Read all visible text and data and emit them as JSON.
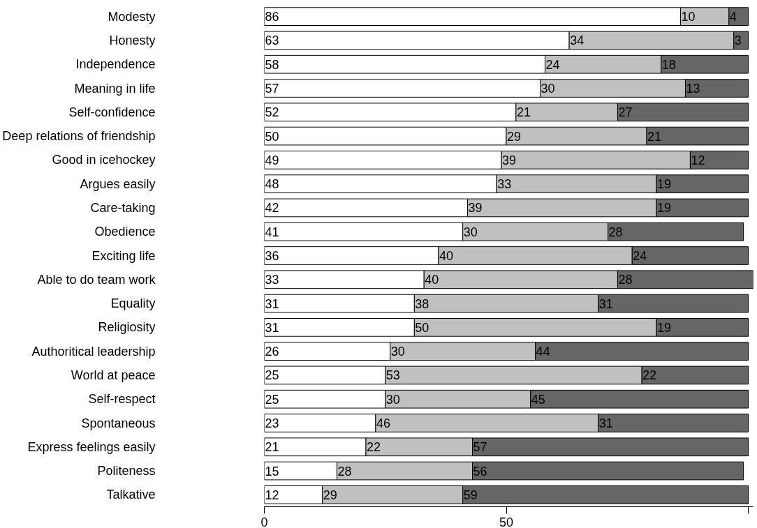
{
  "chart_data": {
    "type": "bar",
    "orientation": "horizontal",
    "stacked": true,
    "data_labels": true,
    "grid": false,
    "categories": [
      "Modesty",
      "Honesty",
      "Independence",
      "Meaning in life",
      "Self-confidence",
      "Deep relations of friendship",
      "Good in icehockey",
      "Argues easily",
      "Care-taking",
      "Obedience",
      "Exciting life",
      "Able to do team work",
      "Equality",
      "Religiosity",
      "Authoritical leadership",
      "World at peace",
      "Self-respect",
      "Spontaneous",
      "Express feelings easily",
      "Politeness",
      "Talkative"
    ],
    "series": [
      {
        "color": "#ffffff",
        "values": [
          86,
          63,
          58,
          57,
          52,
          50,
          49,
          48,
          42,
          41,
          36,
          33,
          31,
          31,
          26,
          25,
          25,
          23,
          21,
          15,
          12
        ]
      },
      {
        "color": "#c0c0c0",
        "values": [
          10,
          34,
          24,
          30,
          21,
          29,
          39,
          33,
          39,
          30,
          40,
          40,
          38,
          50,
          30,
          53,
          30,
          46,
          22,
          28,
          29
        ]
      },
      {
        "color": "#666666",
        "values": [
          4,
          3,
          18,
          13,
          27,
          21,
          12,
          19,
          19,
          28,
          24,
          28,
          31,
          19,
          44,
          22,
          45,
          31,
          57,
          56,
          59
        ]
      }
    ],
    "xlim": [
      0,
      101
    ],
    "xticks": [
      0,
      50,
      {
        "value": 100,
        "label": null
      }
    ]
  }
}
